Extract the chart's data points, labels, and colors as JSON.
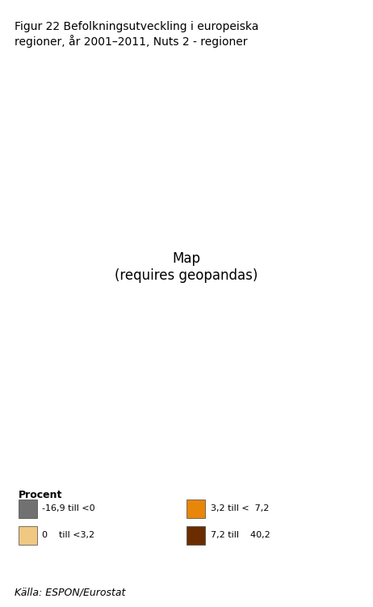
{
  "title": "Figur 22 Befolkningsutveckling i europeiska\nregioner, år 2001–2011, Nuts 2 - regioner",
  "source": "Källa: ESPON/Eurostat",
  "legend_title": "Procent",
  "legend_items": [
    {
      "label": "-16,9 till <0",
      "color": "#717171"
    },
    {
      "label": "0    till <3,2",
      "color": "#f0c882"
    },
    {
      "label": "3,2 till <  7,2",
      "color": "#e8860a"
    },
    {
      "label": "7,2 till    40,2",
      "color": "#6b2d00"
    }
  ],
  "bg_color": "#ffffff",
  "figsize": [
    4.62,
    7.51
  ],
  "dpi": 100,
  "map_extent": [
    -25,
    45,
    34,
    72
  ],
  "colors": {
    "gray": "#717171",
    "light": "#f0c882",
    "orange": "#e8860a",
    "brown": "#6b2d00",
    "water": "#ffffff",
    "border": "#ffffff"
  }
}
